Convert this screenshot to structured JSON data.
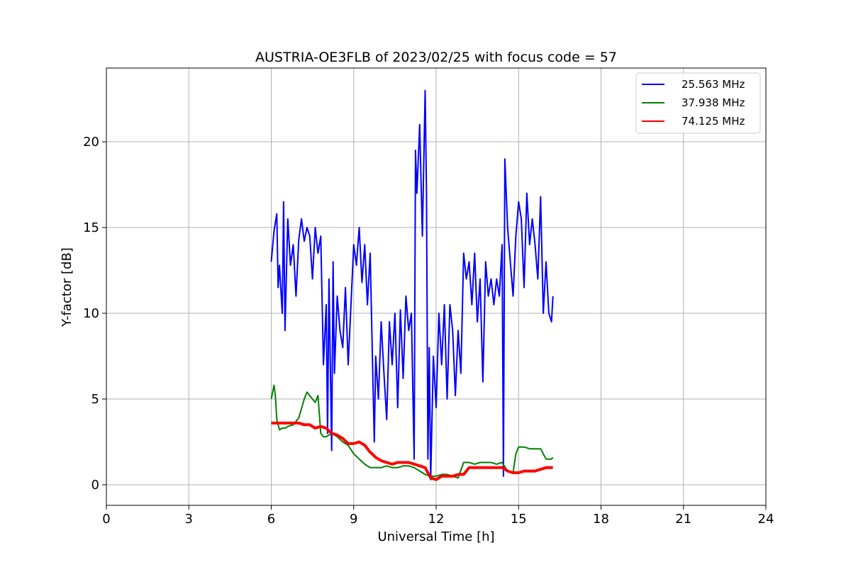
{
  "chart_data": {
    "type": "line",
    "title": "AUSTRIA-OE3FLB of 2023/02/25 with focus code = 57",
    "xlabel": "Universal Time [h]",
    "ylabel": "Y-factor [dB]",
    "xlim": [
      0,
      24
    ],
    "ylim": [
      -1.2,
      24.3
    ],
    "xticks": [
      "0",
      "3",
      "6",
      "9",
      "12",
      "15",
      "18",
      "21",
      "24"
    ],
    "xtick_values": [
      0,
      3,
      6,
      9,
      12,
      15,
      18,
      21,
      24
    ],
    "yticks": [
      "0",
      "5",
      "10",
      "15",
      "20"
    ],
    "ytick_values": [
      0,
      5,
      10,
      15,
      20
    ],
    "grid": true,
    "legend_position": "top-right",
    "series": [
      {
        "name": "25.563 MHz",
        "color": "#0000ff",
        "x": [
          6.0,
          6.1,
          6.2,
          6.25,
          6.3,
          6.4,
          6.45,
          6.5,
          6.6,
          6.7,
          6.8,
          6.9,
          7.0,
          7.1,
          7.2,
          7.3,
          7.4,
          7.5,
          7.6,
          7.7,
          7.8,
          7.9,
          8.0,
          8.05,
          8.1,
          8.2,
          8.25,
          8.3,
          8.4,
          8.5,
          8.6,
          8.7,
          8.8,
          8.9,
          9.0,
          9.1,
          9.2,
          9.3,
          9.4,
          9.5,
          9.6,
          9.7,
          9.75,
          9.8,
          9.9,
          10.0,
          10.1,
          10.2,
          10.3,
          10.4,
          10.5,
          10.6,
          10.7,
          10.8,
          10.9,
          11.0,
          11.1,
          11.2,
          11.25,
          11.3,
          11.4,
          11.5,
          11.6,
          11.65,
          11.7,
          11.75,
          11.8,
          11.9,
          12.0,
          12.1,
          12.2,
          12.3,
          12.4,
          12.5,
          12.6,
          12.7,
          12.8,
          12.9,
          13.0,
          13.1,
          13.2,
          13.3,
          13.4,
          13.5,
          13.6,
          13.7,
          13.8,
          13.9,
          14.0,
          14.1,
          14.2,
          14.3,
          14.4,
          14.45,
          14.5,
          14.6,
          14.7,
          14.8,
          14.9,
          15.0,
          15.1,
          15.2,
          15.3,
          15.4,
          15.5,
          15.6,
          15.7,
          15.8,
          15.9,
          16.0,
          16.1,
          16.2,
          16.25
        ],
        "y": [
          13.0,
          14.8,
          15.8,
          11.5,
          12.8,
          10.0,
          16.5,
          9.0,
          15.5,
          12.8,
          14.0,
          11.0,
          14.3,
          15.5,
          14.2,
          15.0,
          14.5,
          12.0,
          15.0,
          13.5,
          14.5,
          7.0,
          10.5,
          3.0,
          12.0,
          2.0,
          13.0,
          6.5,
          11.0,
          9.0,
          8.0,
          11.5,
          7.0,
          10.5,
          14.0,
          12.8,
          15.0,
          11.8,
          14.0,
          10.5,
          13.5,
          6.0,
          2.5,
          7.5,
          5.0,
          9.5,
          6.5,
          3.8,
          9.5,
          7.0,
          10.0,
          4.5,
          10.2,
          6.2,
          11.0,
          9.0,
          10.0,
          1.5,
          19.5,
          17.0,
          21.0,
          14.5,
          23.0,
          17.0,
          1.5,
          8.0,
          0.3,
          7.5,
          4.5,
          10.0,
          7.0,
          10.5,
          5.0,
          10.5,
          9.0,
          5.2,
          9.0,
          6.5,
          13.5,
          12.0,
          13.0,
          10.5,
          13.5,
          9.5,
          12.0,
          6.0,
          13.0,
          11.0,
          12.0,
          10.5,
          12.0,
          11.0,
          14.0,
          0.5,
          19.0,
          15.0,
          13.0,
          11.0,
          14.5,
          16.5,
          15.5,
          11.5,
          17.0,
          14.0,
          15.5,
          14.0,
          12.0,
          16.8,
          10.0,
          13.0,
          10.0,
          9.5,
          11.0
        ]
      },
      {
        "name": "37.938 MHz",
        "color": "#008000",
        "x": [
          6.0,
          6.1,
          6.15,
          6.2,
          6.3,
          6.4,
          6.5,
          6.6,
          6.8,
          7.0,
          7.2,
          7.3,
          7.5,
          7.6,
          7.7,
          7.8,
          7.9,
          8.0,
          8.2,
          8.4,
          8.6,
          8.8,
          9.0,
          9.2,
          9.4,
          9.6,
          9.8,
          10.0,
          10.2,
          10.4,
          10.6,
          10.8,
          11.0,
          11.2,
          11.4,
          11.6,
          11.8,
          12.0,
          12.2,
          12.4,
          12.6,
          12.8,
          13.0,
          13.2,
          13.4,
          13.6,
          13.8,
          14.0,
          14.2,
          14.4,
          14.6,
          14.8,
          14.9,
          15.0,
          15.2,
          15.4,
          15.6,
          15.8,
          16.0,
          16.2,
          16.25
        ],
        "y": [
          5.0,
          5.8,
          5.2,
          3.8,
          3.2,
          3.3,
          3.3,
          3.4,
          3.5,
          3.9,
          5.0,
          5.4,
          5.0,
          4.8,
          5.2,
          3.0,
          2.8,
          2.8,
          3.0,
          2.8,
          2.5,
          2.3,
          1.8,
          1.5,
          1.2,
          1.0,
          1.0,
          1.0,
          1.1,
          1.0,
          1.0,
          1.1,
          1.1,
          1.0,
          0.8,
          0.6,
          0.5,
          0.5,
          0.6,
          0.6,
          0.5,
          0.4,
          1.3,
          1.3,
          1.2,
          1.3,
          1.3,
          1.3,
          1.2,
          1.3,
          0.8,
          0.7,
          1.8,
          2.2,
          2.2,
          2.1,
          2.1,
          2.1,
          1.5,
          1.5,
          1.6
        ]
      },
      {
        "name": "74.125 MHz",
        "color": "#ff0000",
        "x": [
          6.0,
          6.2,
          6.4,
          6.6,
          6.8,
          7.0,
          7.2,
          7.4,
          7.6,
          7.8,
          8.0,
          8.2,
          8.4,
          8.6,
          8.8,
          9.0,
          9.2,
          9.4,
          9.6,
          9.8,
          10.0,
          10.2,
          10.4,
          10.6,
          10.8,
          11.0,
          11.2,
          11.4,
          11.6,
          11.8,
          12.0,
          12.2,
          12.4,
          12.6,
          12.8,
          13.0,
          13.2,
          13.4,
          13.6,
          13.8,
          14.0,
          14.2,
          14.4,
          14.6,
          14.8,
          15.0,
          15.2,
          15.4,
          15.6,
          15.8,
          16.0,
          16.2,
          16.25
        ],
        "y": [
          3.6,
          3.6,
          3.6,
          3.6,
          3.6,
          3.6,
          3.5,
          3.5,
          3.3,
          3.4,
          3.3,
          3.0,
          2.9,
          2.7,
          2.4,
          2.4,
          2.5,
          2.3,
          1.9,
          1.6,
          1.4,
          1.3,
          1.2,
          1.3,
          1.3,
          1.3,
          1.2,
          1.1,
          1.0,
          0.4,
          0.3,
          0.5,
          0.5,
          0.5,
          0.6,
          0.6,
          1.0,
          1.0,
          1.0,
          1.0,
          1.0,
          1.0,
          1.0,
          0.8,
          0.7,
          0.7,
          0.8,
          0.8,
          0.8,
          0.9,
          1.0,
          1.0,
          1.0
        ]
      }
    ]
  }
}
